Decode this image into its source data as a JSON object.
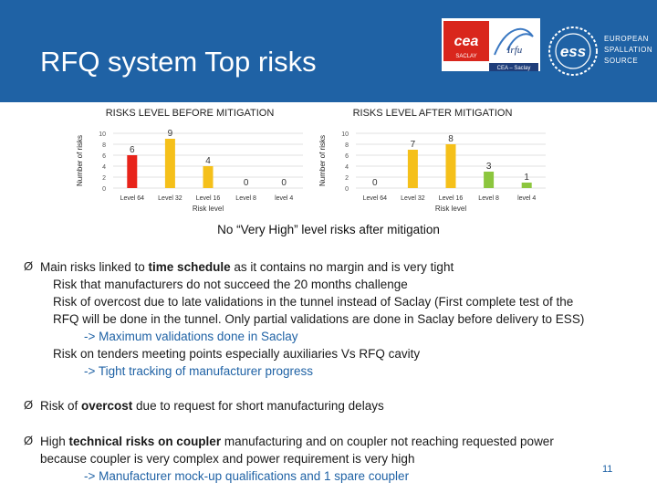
{
  "slide": {
    "title": "RFQ system Top risks",
    "summary": "No “Very High” level risks after mitigation",
    "page_number": "11"
  },
  "logos": {
    "cea_saclay": "SACLAY",
    "cea_caption": "CEA – Saclay",
    "irfu": "Irfu",
    "ess_mark": "ess",
    "ess_lines": [
      "EUROPEAN",
      "SPALLATION",
      "SOURCE"
    ]
  },
  "chart_data": [
    {
      "type": "bar",
      "title": "RISKS LEVEL BEFORE MITIGATION",
      "xlabel": "Risk level",
      "ylabel": "Number of risks",
      "ylim": [
        0,
        10
      ],
      "yticks": [
        0,
        2,
        4,
        6,
        8,
        10
      ],
      "categories": [
        "Level 64",
        "Level 32",
        "Level 16",
        "Level 8",
        "level 4"
      ],
      "values": [
        6,
        9,
        4,
        0,
        0
      ],
      "colors": [
        "#e8231a",
        "#f5c01a",
        "#f5c01a",
        "#8cc63e",
        "#8cc63e"
      ],
      "grid": true
    },
    {
      "type": "bar",
      "title": "RISKS LEVEL AFTER MITIGATION",
      "xlabel": "Risk level",
      "ylabel": "Number of risks",
      "ylim": [
        0,
        10
      ],
      "yticks": [
        0,
        2,
        4,
        6,
        8,
        10
      ],
      "categories": [
        "Level 64",
        "Level 32",
        "Level 16",
        "Level 8",
        "level 4"
      ],
      "values": [
        0,
        7,
        8,
        3,
        1
      ],
      "colors": [
        "#e8231a",
        "#f5c01a",
        "#f5c01a",
        "#8cc63e",
        "#8cc63e"
      ],
      "grid": true
    }
  ],
  "bullets": [
    {
      "marker": "Ø",
      "parts": [
        "Main risks linked to ",
        "time schedule",
        " as it contains no margin and is very tight"
      ],
      "sub": [
        "Risk that manufacturers do not succeed the 20 months challenge",
        "Risk of overcost due to late validations in the tunnel instead of Saclay (First complete test of the",
        "RFQ will be done in the tunnel. Only partial validations are done in Saclay before delivery to ESS)",
        "-> Maximum validations done in Saclay",
        "Risk on tenders meeting points especially auxiliaries Vs RFQ cavity",
        "-> Tight tracking of manufacturer progress"
      ]
    },
    {
      "marker": "Ø",
      "parts": [
        "Risk of ",
        "overcost",
        " due to request for short manufacturing delays"
      ]
    },
    {
      "marker": "Ø",
      "parts": [
        "High ",
        "technical risks on coupler",
        " manufacturing and on coupler not reaching requested power"
      ],
      "line2": "because coupler is very complex and power requirement is very high",
      "action": "-> Manufacturer mock-up qualifications and 1 spare coupler"
    }
  ]
}
